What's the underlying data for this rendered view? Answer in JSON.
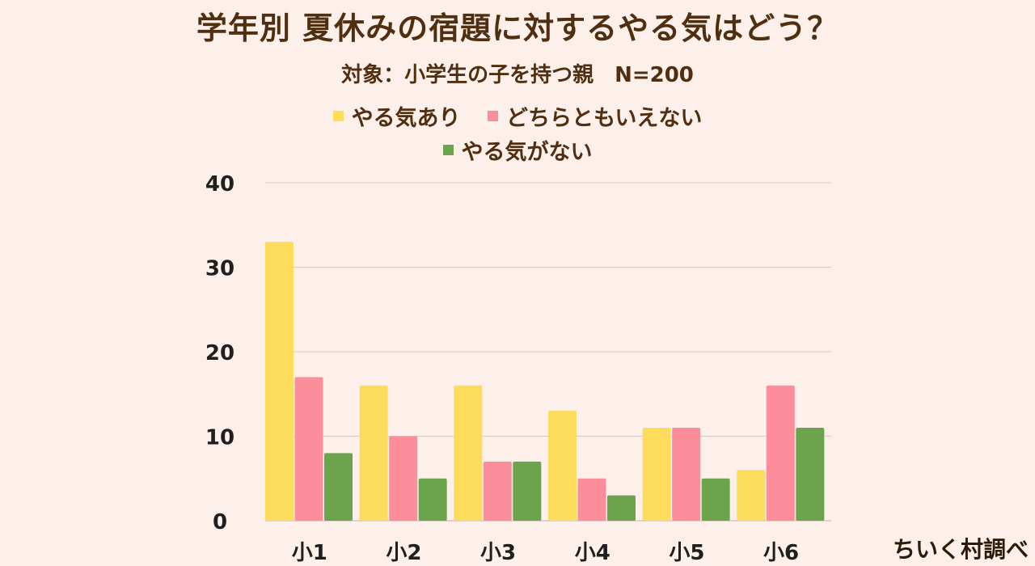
{
  "title": "学年別 夏休みの宿題に対するやる気はどう？",
  "subtitle": "対象：小学生の子を持つ親　N=200",
  "credit": "ちいく村調べ",
  "colors": {
    "background": "#fdf0eb",
    "grid": "#d9c8c4",
    "text": "#4f2f10"
  },
  "chart_data": {
    "type": "bar",
    "categories": [
      "小1",
      "小2",
      "小3",
      "小4",
      "小5",
      "小6"
    ],
    "series": [
      {
        "name": "やる気あり",
        "color": "#fddc5c",
        "values": [
          33,
          16,
          16,
          13,
          11,
          6
        ]
      },
      {
        "name": "どちらともいえない",
        "color": "#fb8e9a",
        "values": [
          17,
          10,
          7,
          5,
          11,
          16
        ]
      },
      {
        "name": "やる気がない",
        "color": "#6ca44e",
        "values": [
          8,
          5,
          7,
          3,
          5,
          11
        ]
      }
    ],
    "ylim": [
      0,
      40
    ],
    "yticks": [
      0,
      10,
      20,
      30,
      40
    ],
    "grid": true,
    "legend": "top"
  }
}
